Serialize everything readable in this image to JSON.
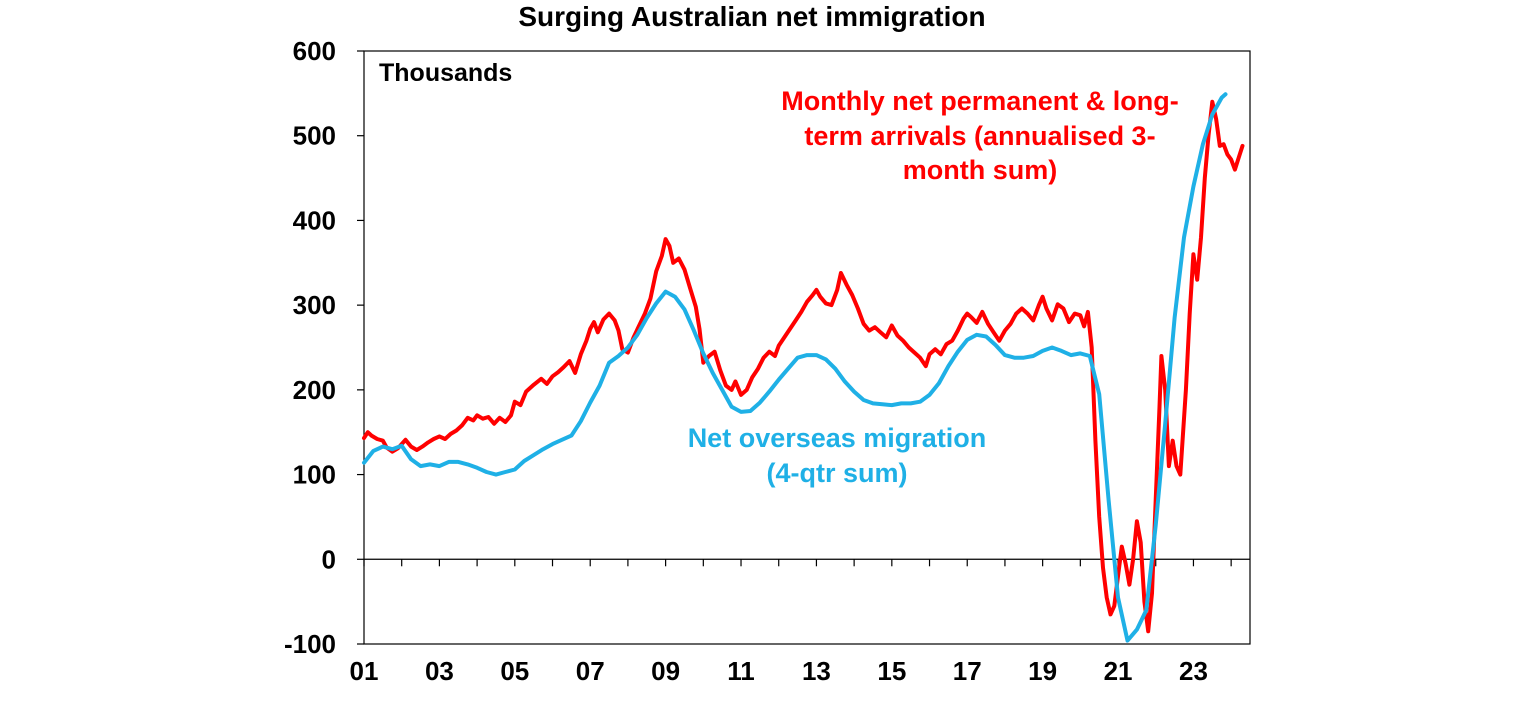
{
  "chart_data": {
    "type": "line",
    "title": "Surging Australian net immigration",
    "unit_label": "Thousands",
    "ylim": [
      -100,
      600
    ],
    "y_ticks": [
      -100,
      0,
      100,
      200,
      300,
      400,
      500,
      600
    ],
    "x_range": [
      2001,
      2024.5
    ],
    "x_ticks": [
      {
        "value": 2001,
        "label": "01"
      },
      {
        "value": 2003,
        "label": "03"
      },
      {
        "value": 2005,
        "label": "05"
      },
      {
        "value": 2007,
        "label": "07"
      },
      {
        "value": 2009,
        "label": "09"
      },
      {
        "value": 2011,
        "label": "11"
      },
      {
        "value": 2013,
        "label": "13"
      },
      {
        "value": 2015,
        "label": "15"
      },
      {
        "value": 2017,
        "label": "17"
      },
      {
        "value": 2019,
        "label": "19"
      },
      {
        "value": 2021,
        "label": "21"
      },
      {
        "value": 2023,
        "label": "23"
      }
    ],
    "grid": false,
    "series": [
      {
        "label_lines": [
          "Monthly net permanent & long-",
          "term arrivals (annualised 3-",
          "month sum)"
        ],
        "color": "#ff0000",
        "points": [
          [
            2001.0,
            143
          ],
          [
            2001.1,
            150
          ],
          [
            2001.2,
            146
          ],
          [
            2001.35,
            142
          ],
          [
            2001.5,
            140
          ],
          [
            2001.6,
            132
          ],
          [
            2001.75,
            127
          ],
          [
            2001.9,
            131
          ],
          [
            2002.0,
            136
          ],
          [
            2002.1,
            141
          ],
          [
            2002.25,
            133
          ],
          [
            2002.4,
            129
          ],
          [
            2002.55,
            133
          ],
          [
            2002.7,
            138
          ],
          [
            2002.85,
            142
          ],
          [
            2003.0,
            145
          ],
          [
            2003.15,
            142
          ],
          [
            2003.3,
            148
          ],
          [
            2003.45,
            152
          ],
          [
            2003.6,
            158
          ],
          [
            2003.75,
            167
          ],
          [
            2003.9,
            164
          ],
          [
            2004.0,
            170
          ],
          [
            2004.15,
            166
          ],
          [
            2004.3,
            168
          ],
          [
            2004.45,
            160
          ],
          [
            2004.6,
            167
          ],
          [
            2004.75,
            162
          ],
          [
            2004.9,
            170
          ],
          [
            2005.0,
            186
          ],
          [
            2005.15,
            182
          ],
          [
            2005.3,
            198
          ],
          [
            2005.5,
            206
          ],
          [
            2005.7,
            213
          ],
          [
            2005.85,
            207
          ],
          [
            2006.0,
            216
          ],
          [
            2006.15,
            221
          ],
          [
            2006.3,
            227
          ],
          [
            2006.45,
            234
          ],
          [
            2006.6,
            220
          ],
          [
            2006.75,
            242
          ],
          [
            2006.9,
            258
          ],
          [
            2007.0,
            272
          ],
          [
            2007.1,
            280
          ],
          [
            2007.2,
            268
          ],
          [
            2007.35,
            283
          ],
          [
            2007.5,
            290
          ],
          [
            2007.65,
            282
          ],
          [
            2007.75,
            270
          ],
          [
            2007.85,
            248
          ],
          [
            2008.0,
            244
          ],
          [
            2008.15,
            262
          ],
          [
            2008.3,
            276
          ],
          [
            2008.45,
            290
          ],
          [
            2008.6,
            308
          ],
          [
            2008.75,
            340
          ],
          [
            2008.9,
            358
          ],
          [
            2009.0,
            378
          ],
          [
            2009.1,
            370
          ],
          [
            2009.2,
            350
          ],
          [
            2009.35,
            355
          ],
          [
            2009.5,
            342
          ],
          [
            2009.65,
            320
          ],
          [
            2009.8,
            298
          ],
          [
            2009.9,
            272
          ],
          [
            2010.0,
            232
          ],
          [
            2010.15,
            240
          ],
          [
            2010.3,
            245
          ],
          [
            2010.45,
            223
          ],
          [
            2010.6,
            205
          ],
          [
            2010.75,
            200
          ],
          [
            2010.85,
            210
          ],
          [
            2011.0,
            194
          ],
          [
            2011.15,
            200
          ],
          [
            2011.3,
            215
          ],
          [
            2011.45,
            225
          ],
          [
            2011.6,
            238
          ],
          [
            2011.75,
            245
          ],
          [
            2011.9,
            240
          ],
          [
            2012.0,
            252
          ],
          [
            2012.15,
            262
          ],
          [
            2012.3,
            272
          ],
          [
            2012.45,
            282
          ],
          [
            2012.6,
            292
          ],
          [
            2012.75,
            304
          ],
          [
            2012.9,
            312
          ],
          [
            2013.0,
            318
          ],
          [
            2013.1,
            310
          ],
          [
            2013.25,
            302
          ],
          [
            2013.4,
            300
          ],
          [
            2013.55,
            318
          ],
          [
            2013.65,
            338
          ],
          [
            2013.8,
            324
          ],
          [
            2013.95,
            312
          ],
          [
            2014.1,
            296
          ],
          [
            2014.25,
            278
          ],
          [
            2014.4,
            270
          ],
          [
            2014.55,
            274
          ],
          [
            2014.7,
            268
          ],
          [
            2014.85,
            262
          ],
          [
            2015.0,
            276
          ],
          [
            2015.15,
            264
          ],
          [
            2015.3,
            258
          ],
          [
            2015.45,
            250
          ],
          [
            2015.6,
            244
          ],
          [
            2015.75,
            238
          ],
          [
            2015.9,
            228
          ],
          [
            2016.0,
            242
          ],
          [
            2016.15,
            248
          ],
          [
            2016.3,
            242
          ],
          [
            2016.45,
            254
          ],
          [
            2016.6,
            258
          ],
          [
            2016.75,
            270
          ],
          [
            2016.9,
            284
          ],
          [
            2017.0,
            290
          ],
          [
            2017.1,
            286
          ],
          [
            2017.25,
            279
          ],
          [
            2017.4,
            292
          ],
          [
            2017.55,
            278
          ],
          [
            2017.7,
            268
          ],
          [
            2017.85,
            258
          ],
          [
            2018.0,
            270
          ],
          [
            2018.15,
            278
          ],
          [
            2018.3,
            290
          ],
          [
            2018.45,
            296
          ],
          [
            2018.6,
            290
          ],
          [
            2018.75,
            282
          ],
          [
            2018.9,
            300
          ],
          [
            2019.0,
            310
          ],
          [
            2019.1,
            296
          ],
          [
            2019.25,
            282
          ],
          [
            2019.4,
            301
          ],
          [
            2019.55,
            296
          ],
          [
            2019.7,
            280
          ],
          [
            2019.85,
            290
          ],
          [
            2020.0,
            288
          ],
          [
            2020.1,
            275
          ],
          [
            2020.2,
            292
          ],
          [
            2020.3,
            250
          ],
          [
            2020.4,
            140
          ],
          [
            2020.5,
            50
          ],
          [
            2020.6,
            -10
          ],
          [
            2020.7,
            -45
          ],
          [
            2020.8,
            -65
          ],
          [
            2020.9,
            -55
          ],
          [
            2021.0,
            -20
          ],
          [
            2021.1,
            15
          ],
          [
            2021.2,
            -5
          ],
          [
            2021.3,
            -30
          ],
          [
            2021.4,
            0
          ],
          [
            2021.5,
            45
          ],
          [
            2021.6,
            20
          ],
          [
            2021.7,
            -50
          ],
          [
            2021.8,
            -85
          ],
          [
            2021.9,
            -40
          ],
          [
            2022.0,
            70
          ],
          [
            2022.1,
            180
          ],
          [
            2022.15,
            240
          ],
          [
            2022.25,
            200
          ],
          [
            2022.35,
            110
          ],
          [
            2022.45,
            140
          ],
          [
            2022.55,
            110
          ],
          [
            2022.65,
            100
          ],
          [
            2022.8,
            200
          ],
          [
            2022.9,
            290
          ],
          [
            2023.0,
            360
          ],
          [
            2023.1,
            330
          ],
          [
            2023.2,
            380
          ],
          [
            2023.3,
            450
          ],
          [
            2023.4,
            500
          ],
          [
            2023.5,
            540
          ],
          [
            2023.6,
            520
          ],
          [
            2023.7,
            488
          ],
          [
            2023.8,
            490
          ],
          [
            2023.9,
            478
          ],
          [
            2024.0,
            472
          ],
          [
            2024.1,
            460
          ],
          [
            2024.2,
            474
          ],
          [
            2024.3,
            488
          ]
        ]
      },
      {
        "label_lines": [
          "Net overseas migration",
          "(4-qtr sum)"
        ],
        "color": "#1fb0e6",
        "points": [
          [
            2001.0,
            114
          ],
          [
            2001.25,
            128
          ],
          [
            2001.5,
            133
          ],
          [
            2001.75,
            130
          ],
          [
            2002.0,
            134
          ],
          [
            2002.25,
            118
          ],
          [
            2002.5,
            110
          ],
          [
            2002.75,
            112
          ],
          [
            2003.0,
            110
          ],
          [
            2003.25,
            115
          ],
          [
            2003.5,
            115
          ],
          [
            2003.75,
            112
          ],
          [
            2004.0,
            108
          ],
          [
            2004.25,
            103
          ],
          [
            2004.5,
            100
          ],
          [
            2004.75,
            103
          ],
          [
            2005.0,
            106
          ],
          [
            2005.25,
            116
          ],
          [
            2005.5,
            123
          ],
          [
            2005.75,
            130
          ],
          [
            2006.0,
            136
          ],
          [
            2006.25,
            141
          ],
          [
            2006.5,
            146
          ],
          [
            2006.75,
            163
          ],
          [
            2007.0,
            185
          ],
          [
            2007.25,
            205
          ],
          [
            2007.5,
            232
          ],
          [
            2007.75,
            240
          ],
          [
            2008.0,
            250
          ],
          [
            2008.25,
            265
          ],
          [
            2008.5,
            285
          ],
          [
            2008.75,
            302
          ],
          [
            2009.0,
            316
          ],
          [
            2009.25,
            310
          ],
          [
            2009.5,
            295
          ],
          [
            2009.75,
            270
          ],
          [
            2010.0,
            243
          ],
          [
            2010.25,
            220
          ],
          [
            2010.5,
            200
          ],
          [
            2010.75,
            180
          ],
          [
            2011.0,
            174
          ],
          [
            2011.25,
            175
          ],
          [
            2011.5,
            185
          ],
          [
            2011.75,
            198
          ],
          [
            2012.0,
            212
          ],
          [
            2012.25,
            225
          ],
          [
            2012.5,
            238
          ],
          [
            2012.75,
            241
          ],
          [
            2013.0,
            241
          ],
          [
            2013.25,
            236
          ],
          [
            2013.5,
            225
          ],
          [
            2013.75,
            210
          ],
          [
            2014.0,
            198
          ],
          [
            2014.25,
            188
          ],
          [
            2014.5,
            184
          ],
          [
            2014.75,
            183
          ],
          [
            2015.0,
            182
          ],
          [
            2015.25,
            184
          ],
          [
            2015.5,
            184
          ],
          [
            2015.75,
            186
          ],
          [
            2016.0,
            194
          ],
          [
            2016.25,
            208
          ],
          [
            2016.5,
            228
          ],
          [
            2016.75,
            245
          ],
          [
            2017.0,
            259
          ],
          [
            2017.25,
            265
          ],
          [
            2017.5,
            263
          ],
          [
            2017.75,
            253
          ],
          [
            2018.0,
            241
          ],
          [
            2018.25,
            238
          ],
          [
            2018.5,
            238
          ],
          [
            2018.75,
            240
          ],
          [
            2019.0,
            246
          ],
          [
            2019.25,
            250
          ],
          [
            2019.5,
            246
          ],
          [
            2019.75,
            241
          ],
          [
            2020.0,
            243
          ],
          [
            2020.25,
            240
          ],
          [
            2020.5,
            195
          ],
          [
            2020.75,
            70
          ],
          [
            2021.0,
            -45
          ],
          [
            2021.25,
            -96
          ],
          [
            2021.5,
            -83
          ],
          [
            2021.75,
            -60
          ],
          [
            2022.0,
            40
          ],
          [
            2022.25,
            160
          ],
          [
            2022.5,
            285
          ],
          [
            2022.75,
            380
          ],
          [
            2023.0,
            440
          ],
          [
            2023.25,
            490
          ],
          [
            2023.5,
            525
          ],
          [
            2023.75,
            545
          ],
          [
            2023.85,
            549
          ]
        ]
      }
    ]
  }
}
